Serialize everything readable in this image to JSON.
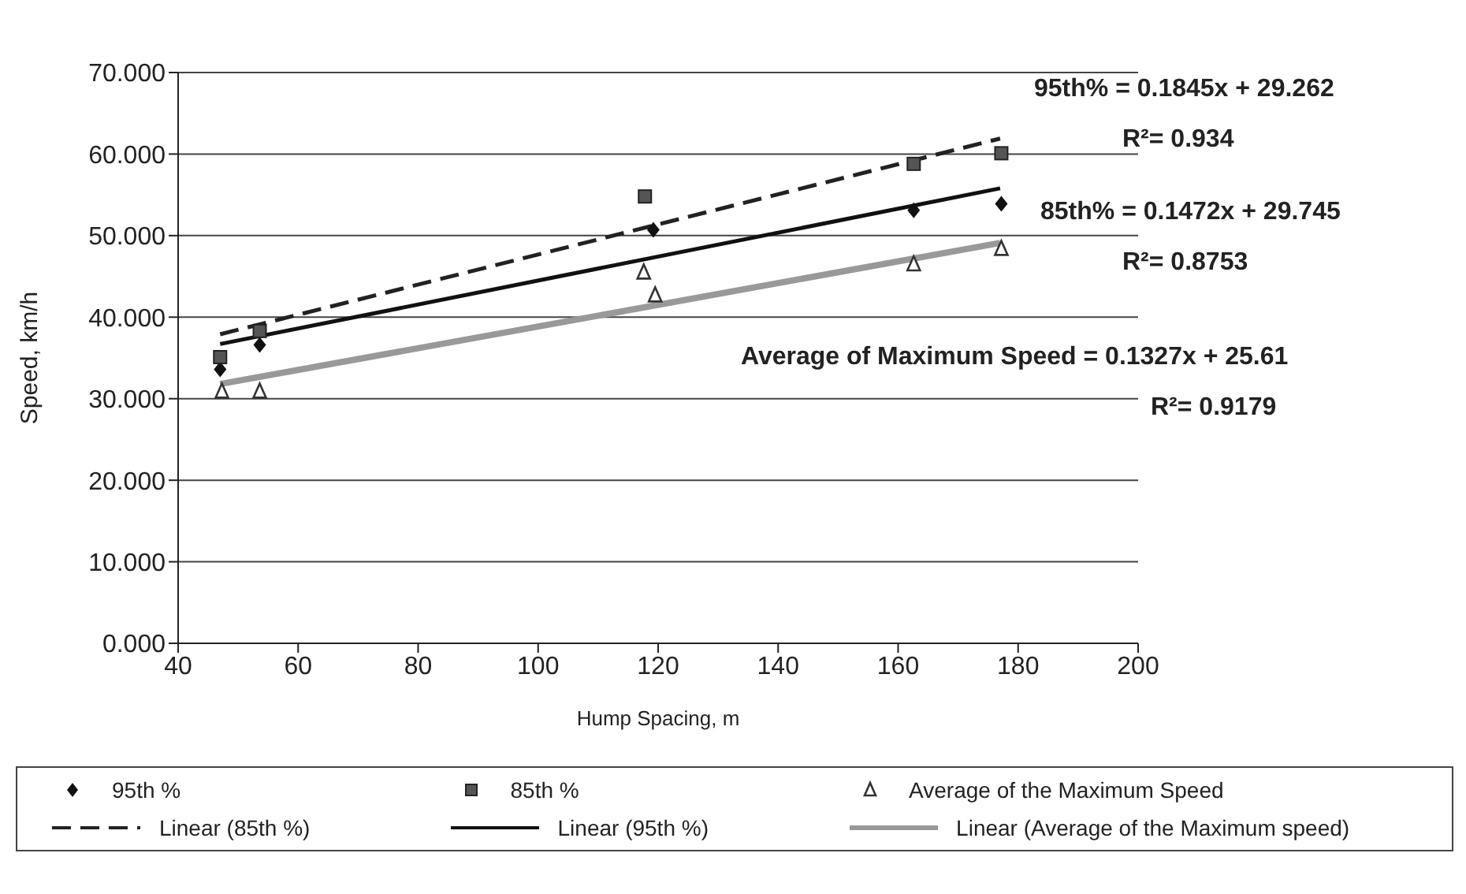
{
  "chart_data": {
    "type": "scatter",
    "xlabel": "Hump Spacing, m",
    "ylabel": "Speed, km/h",
    "xlim": [
      40,
      200
    ],
    "xticks": [
      40,
      60,
      80,
      100,
      120,
      140,
      160,
      180,
      200
    ],
    "ylim": [
      0,
      70
    ],
    "yticks": [
      {
        "value": 0,
        "label": "0.000"
      },
      {
        "value": 10,
        "label": "10.000"
      },
      {
        "value": 20,
        "label": "20.000"
      },
      {
        "value": 30,
        "label": "30.000"
      },
      {
        "value": 40,
        "label": "40.000"
      },
      {
        "value": 50,
        "label": "50.000"
      },
      {
        "value": 60,
        "label": "60.000"
      },
      {
        "value": 70,
        "label": "70.000"
      }
    ],
    "grid": "y",
    "legend": "bottom",
    "series": [
      {
        "name": "95th %",
        "marker": "diamond",
        "color": "#111111",
        "x": [
          47,
          53.6,
          119.2,
          162.6,
          177.2
        ],
        "values": [
          33.6,
          36.6,
          50.7,
          53.1,
          53.9
        ]
      },
      {
        "name": "85th %",
        "marker": "square",
        "color": "#555555",
        "x": [
          47,
          53.6,
          117.8,
          162.6,
          177.2
        ],
        "values": [
          35.1,
          38.3,
          54.8,
          58.8,
          60.1
        ]
      },
      {
        "name": "Average of the Maximum Speed",
        "marker": "triangle",
        "color": "#333333",
        "x": [
          47.3,
          53.6,
          117.6,
          119.5,
          162.6,
          177.2
        ],
        "values": [
          30.9,
          30.9,
          45.5,
          42.7,
          46.5,
          48.4
        ]
      },
      {
        "name": "Linear (85th %)",
        "type": "line",
        "line_style": "dashed",
        "color": "#222222",
        "x": [
          47,
          177
        ],
        "values": [
          37.9,
          61.9
        ]
      },
      {
        "name": "Linear (95th %)",
        "type": "line",
        "line_style": "solid",
        "color": "#111111",
        "x": [
          47,
          177
        ],
        "values": [
          36.7,
          55.8
        ]
      },
      {
        "name": "Linear (Average of the Maximum speed)",
        "type": "line",
        "line_style": "solid",
        "color": "#999999",
        "x": [
          47,
          177
        ],
        "values": [
          31.8,
          49.1
        ]
      }
    ],
    "annotations": [
      "95th% = 0.1845x + 29.262",
      "R²= 0.934",
      "85th% = 0.1472x + 29.745",
      "R²= 0.8753",
      "Average of Maximum Speed = 0.1327x + 25.61",
      "R²= 0.9179"
    ]
  }
}
